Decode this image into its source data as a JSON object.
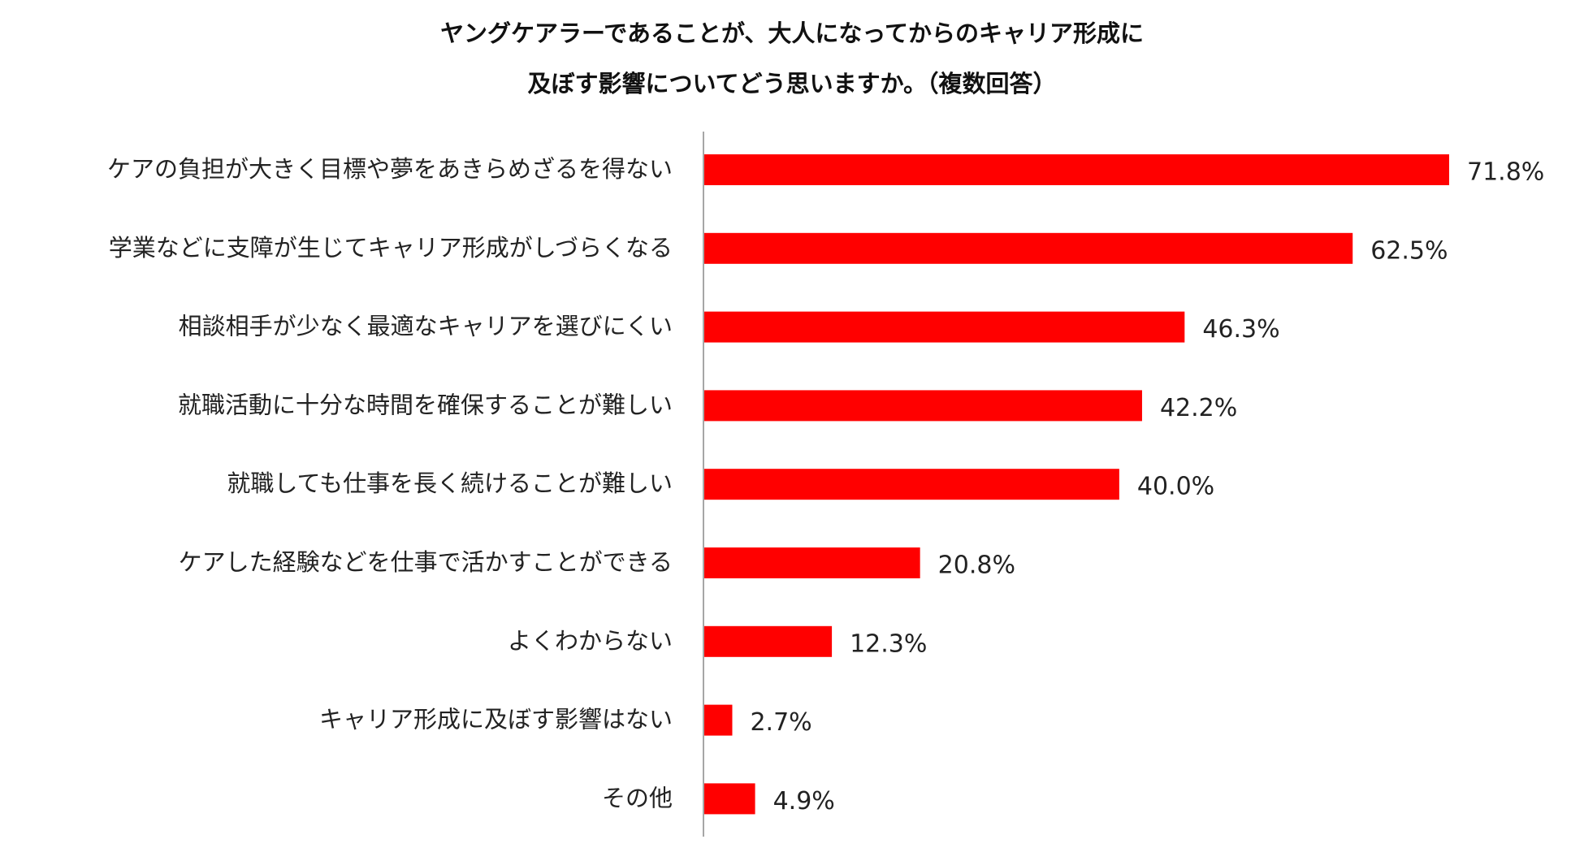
{
  "colors": {
    "bar": "#ff0000",
    "axis": "#888888",
    "text": "#222222"
  },
  "chart_data": {
    "type": "bar",
    "orientation": "horizontal",
    "title": [
      "ヤングケアラーであることが、大人になってからのキャリア形成に",
      "及ぼす影響についてどう思いますか。（複数回答）"
    ],
    "categories": [
      "ケアの負担が大きく目標や夢をあきらめざるを得ない",
      "学業などに支障が生じてキャリア形成がしづらくなる",
      "相談相手が少なく最適なキャリアを選びにくい",
      "就職活動に十分な時間を確保することが難しい",
      "就職しても仕事を長く続けることが難しい",
      "ケアした経験などを仕事で活かすことができる",
      "よくわからない",
      "キャリア形成に及ぼす影響はない",
      "その他"
    ],
    "values": [
      71.8,
      62.5,
      46.3,
      42.2,
      40.0,
      20.8,
      12.3,
      2.7,
      4.9
    ],
    "value_labels": [
      "71.8%",
      "62.5%",
      "46.3%",
      "42.2%",
      "40.0%",
      "20.8%",
      "12.3%",
      "2.7%",
      "4.9%"
    ],
    "unit": "%",
    "xlim": [
      0,
      100
    ],
    "grid": false,
    "legend": "none"
  }
}
